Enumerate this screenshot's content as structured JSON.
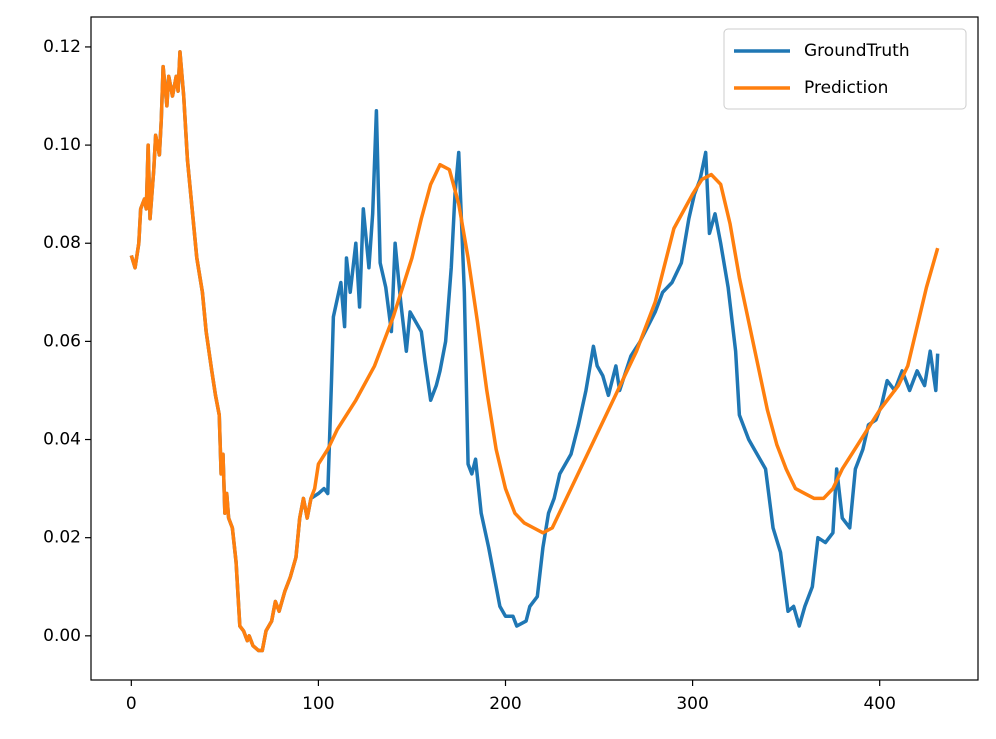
{
  "chart_data": {
    "type": "line",
    "xlim": [
      -21.55,
      452.55
    ],
    "ylim": [
      -0.009,
      0.1261
    ],
    "xticks": [
      0,
      100,
      200,
      300,
      400
    ],
    "yticks": [
      {
        "value": 0,
        "label": "0.00"
      },
      {
        "value": 0.02,
        "label": "0.02"
      },
      {
        "value": 0.04,
        "label": "0.04"
      },
      {
        "value": 0.06,
        "label": "0.06"
      },
      {
        "value": 0.08,
        "label": "0.08"
      },
      {
        "value": 0.1,
        "label": "0.10"
      },
      {
        "value": 0.12,
        "label": "0.12"
      }
    ],
    "legend": "upper right",
    "series": [
      {
        "name": "GroundTruth",
        "color": "#1f77b4",
        "x": [
          0,
          2,
          4,
          5,
          7,
          8,
          9,
          10,
          12,
          13,
          15,
          16,
          17,
          19,
          20,
          22,
          24,
          25,
          26,
          28,
          30,
          33,
          35,
          38,
          40,
          43,
          45,
          47,
          48,
          49,
          50,
          51,
          52,
          54,
          56,
          58,
          60,
          62,
          63,
          65,
          68,
          70,
          72,
          75,
          77,
          79,
          82,
          85,
          88,
          90,
          92,
          94,
          96,
          100,
          103,
          105,
          107,
          108,
          112,
          114,
          115,
          117,
          120,
          122,
          124,
          127,
          129,
          131,
          133,
          136,
          139,
          141,
          144,
          147,
          149,
          155,
          157,
          160,
          163,
          165,
          168,
          171,
          173,
          175,
          178,
          180,
          182,
          184,
          187,
          191,
          195,
          197,
          200,
          204,
          206,
          211,
          213,
          217,
          220,
          223,
          226,
          229,
          235,
          239,
          243,
          247,
          249,
          252,
          255,
          259,
          261,
          267,
          272,
          276,
          280,
          284,
          289,
          294,
          298,
          301,
          304,
          307,
          309,
          312,
          315,
          319,
          323,
          325,
          330,
          333,
          339,
          343,
          347,
          351,
          354,
          357,
          360,
          364,
          367,
          371,
          375,
          377,
          380,
          384,
          387,
          391,
          394,
          398,
          401,
          404,
          408,
          412,
          416,
          420,
          424,
          427,
          430,
          431
        ],
        "values": [
          0.0775,
          0.075,
          0.08,
          0.087,
          0.089,
          0.087,
          0.1,
          0.085,
          0.095,
          0.102,
          0.098,
          0.105,
          0.116,
          0.108,
          0.114,
          0.11,
          0.114,
          0.111,
          0.119,
          0.11,
          0.097,
          0.085,
          0.077,
          0.07,
          0.062,
          0.054,
          0.049,
          0.045,
          0.033,
          0.037,
          0.025,
          0.029,
          0.024,
          0.022,
          0.015,
          0.002,
          0.001,
          -0.001,
          0,
          -0.002,
          -0.003,
          -0.003,
          0.001,
          0.003,
          0.007,
          0.005,
          0.009,
          0.012,
          0.016,
          0.024,
          0.028,
          0.024,
          0.028,
          0.029,
          0.03,
          0.029,
          0.052,
          0.065,
          0.072,
          0.063,
          0.077,
          0.07,
          0.08,
          0.067,
          0.087,
          0.075,
          0.086,
          0.107,
          0.076,
          0.071,
          0.062,
          0.08,
          0.068,
          0.058,
          0.066,
          0.062,
          0.056,
          0.048,
          0.051,
          0.054,
          0.06,
          0.075,
          0.09,
          0.0985,
          0.07,
          0.035,
          0.033,
          0.036,
          0.025,
          0.018,
          0.01,
          0.006,
          0.004,
          0.004,
          0.002,
          0.003,
          0.006,
          0.008,
          0.018,
          0.025,
          0.028,
          0.033,
          0.037,
          0.043,
          0.05,
          0.059,
          0.055,
          0.053,
          0.049,
          0.055,
          0.05,
          0.057,
          0.06,
          0.063,
          0.066,
          0.07,
          0.072,
          0.076,
          0.085,
          0.09,
          0.093,
          0.0985,
          0.082,
          0.086,
          0.08,
          0.071,
          0.058,
          0.045,
          0.04,
          0.038,
          0.034,
          0.022,
          0.017,
          0.005,
          0.006,
          0.002,
          0.006,
          0.01,
          0.02,
          0.019,
          0.021,
          0.034,
          0.024,
          0.022,
          0.034,
          0.038,
          0.043,
          0.044,
          0.047,
          0.052,
          0.05,
          0.054,
          0.05,
          0.054,
          0.051,
          0.058,
          0.05,
          0.0575
        ]
      },
      {
        "name": "Prediction",
        "color": "#ff7f0e",
        "x": [
          0,
          2,
          4,
          5,
          7,
          8,
          9,
          10,
          12,
          13,
          15,
          16,
          17,
          19,
          20,
          22,
          24,
          25,
          26,
          28,
          30,
          33,
          35,
          38,
          40,
          43,
          45,
          47,
          48,
          49,
          50,
          51,
          52,
          54,
          56,
          58,
          60,
          62,
          63,
          65,
          68,
          70,
          72,
          75,
          77,
          79,
          82,
          85,
          88,
          90,
          92,
          94,
          96,
          98,
          100,
          105,
          110,
          120,
          130,
          140,
          150,
          155,
          160,
          165,
          170,
          175,
          180,
          185,
          190,
          195,
          200,
          205,
          210,
          215,
          220,
          225,
          230,
          240,
          250,
          260,
          270,
          280,
          290,
          300,
          305,
          310,
          315,
          320,
          325,
          330,
          335,
          340,
          345,
          350,
          355,
          360,
          365,
          370,
          375,
          380,
          385,
          390,
          400,
          410,
          415,
          420,
          425,
          431
        ],
        "values": [
          0.0775,
          0.075,
          0.08,
          0.087,
          0.089,
          0.087,
          0.1,
          0.085,
          0.095,
          0.102,
          0.098,
          0.105,
          0.116,
          0.108,
          0.114,
          0.11,
          0.114,
          0.111,
          0.119,
          0.11,
          0.097,
          0.085,
          0.077,
          0.07,
          0.062,
          0.054,
          0.049,
          0.045,
          0.033,
          0.037,
          0.025,
          0.029,
          0.024,
          0.022,
          0.015,
          0.002,
          0.001,
          -0.001,
          0,
          -0.002,
          -0.003,
          -0.003,
          0.001,
          0.003,
          0.007,
          0.005,
          0.009,
          0.012,
          0.016,
          0.024,
          0.028,
          0.024,
          0.028,
          0.03,
          0.035,
          0.038,
          0.042,
          0.048,
          0.055,
          0.065,
          0.077,
          0.085,
          0.092,
          0.096,
          0.095,
          0.088,
          0.077,
          0.064,
          0.05,
          0.038,
          0.03,
          0.025,
          0.023,
          0.022,
          0.021,
          0.022,
          0.026,
          0.034,
          0.042,
          0.05,
          0.058,
          0.068,
          0.083,
          0.09,
          0.093,
          0.094,
          0.092,
          0.084,
          0.073,
          0.064,
          0.055,
          0.046,
          0.039,
          0.034,
          0.03,
          0.029,
          0.028,
          0.028,
          0.03,
          0.034,
          0.037,
          0.04,
          0.046,
          0.051,
          0.055,
          0.063,
          0.071,
          0.079
        ]
      }
    ]
  }
}
